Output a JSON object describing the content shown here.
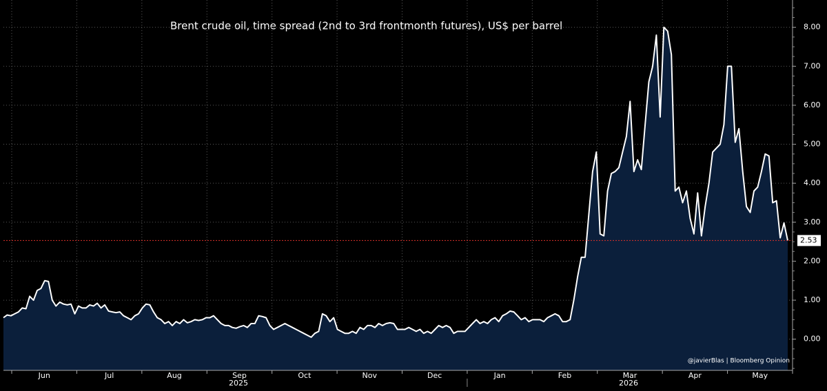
{
  "chart_data": {
    "type": "line",
    "title": "Brent crude oil, time spread (2nd to 3rd frontmonth futures), US$ per barrel",
    "source": "@javierBlas | Bloomberg Opinion",
    "months": [
      "Jun",
      "Jul",
      "Aug",
      "Sep",
      "Oct",
      "Nov",
      "Dec",
      "Jan",
      "Feb",
      "Mar",
      "Apr",
      "May"
    ],
    "years": [
      "2025",
      "2026"
    ],
    "values": [
      0.55,
      0.62,
      0.6,
      0.65,
      0.7,
      0.8,
      0.78,
      1.1,
      1.0,
      1.25,
      1.3,
      1.5,
      1.48,
      1.0,
      0.85,
      0.95,
      0.9,
      0.88,
      0.9,
      0.65,
      0.85,
      0.8,
      0.8,
      0.88,
      0.85,
      0.92,
      0.8,
      0.88,
      0.72,
      0.7,
      0.68,
      0.7,
      0.6,
      0.55,
      0.5,
      0.6,
      0.65,
      0.8,
      0.9,
      0.88,
      0.7,
      0.55,
      0.5,
      0.4,
      0.45,
      0.35,
      0.45,
      0.4,
      0.5,
      0.42,
      0.45,
      0.5,
      0.48,
      0.5,
      0.55,
      0.55,
      0.6,
      0.5,
      0.4,
      0.35,
      0.35,
      0.3,
      0.28,
      0.32,
      0.35,
      0.3,
      0.4,
      0.4,
      0.6,
      0.58,
      0.55,
      0.35,
      0.25,
      0.3,
      0.35,
      0.4,
      0.35,
      0.3,
      0.25,
      0.2,
      0.15,
      0.1,
      0.05,
      0.15,
      0.2,
      0.65,
      0.6,
      0.45,
      0.55,
      0.25,
      0.2,
      0.15,
      0.15,
      0.2,
      0.15,
      0.3,
      0.25,
      0.35,
      0.35,
      0.3,
      0.4,
      0.35,
      0.4,
      0.42,
      0.4,
      0.25,
      0.25,
      0.25,
      0.3,
      0.25,
      0.2,
      0.25,
      0.15,
      0.2,
      0.15,
      0.25,
      0.35,
      0.3,
      0.35,
      0.3,
      0.15,
      0.2,
      0.2,
      0.2,
      0.3,
      0.4,
      0.5,
      0.4,
      0.45,
      0.4,
      0.5,
      0.55,
      0.45,
      0.6,
      0.65,
      0.72,
      0.7,
      0.6,
      0.5,
      0.55,
      0.45,
      0.5,
      0.5,
      0.5,
      0.45,
      0.55,
      0.6,
      0.65,
      0.6,
      0.45,
      0.45,
      0.5,
      1.0,
      1.6,
      2.1,
      2.1,
      3.2,
      4.3,
      4.8,
      2.7,
      2.65,
      3.8,
      4.25,
      4.3,
      4.4,
      4.8,
      5.2,
      6.1,
      4.3,
      4.6,
      4.35,
      5.5,
      6.6,
      7.0,
      7.8,
      5.7,
      8.0,
      7.9,
      7.3,
      3.8,
      3.9,
      3.5,
      3.8,
      3.1,
      2.7,
      3.75,
      2.65,
      3.4,
      4.0,
      4.8,
      4.9,
      5.0,
      5.5,
      7.0,
      7.0,
      5.05,
      5.4,
      4.3,
      3.4,
      3.25,
      3.8,
      3.9,
      4.3,
      4.75,
      4.7,
      3.5,
      3.55,
      2.6,
      2.98,
      2.53
    ],
    "color": "#ffffff",
    "fill": "#0b1f3b",
    "ylim": [
      -0.8,
      8.7
    ],
    "yticks": [
      {
        "value": 0,
        "label": "0.00"
      },
      {
        "value": 1,
        "label": "1.00"
      },
      {
        "value": 2,
        "label": "2.00"
      },
      {
        "value": 3,
        "label": "3.00"
      },
      {
        "value": 4,
        "label": "4.00"
      },
      {
        "value": 5,
        "label": "5.00"
      },
      {
        "value": 6,
        "label": "6.00"
      },
      {
        "value": 7,
        "label": "7.00"
      },
      {
        "value": 8,
        "label": "8.00"
      }
    ],
    "grid": true
  }
}
